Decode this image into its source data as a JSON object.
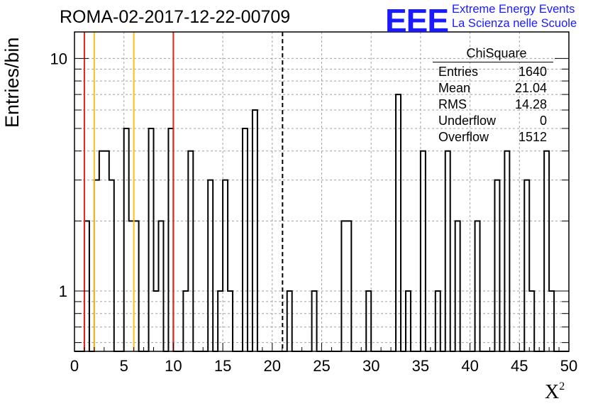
{
  "header": {
    "run_title": "ROMA-02-2017-12-22-00709",
    "logo": "EEE",
    "logo_line1": "Extreme Energy Events",
    "logo_line2": "La Scienza nelle Scuole"
  },
  "stats": {
    "title": "ChiSquare",
    "rows": [
      {
        "label": "Entries",
        "value": "1640"
      },
      {
        "label": "Mean",
        "value": "21.04"
      },
      {
        "label": "RMS",
        "value": "14.28"
      },
      {
        "label": "Underflow",
        "value": "0"
      },
      {
        "label": "Overflow",
        "value": "1512"
      }
    ]
  },
  "chart_data": {
    "type": "histogram",
    "title": "ROMA-02-2017-12-22-00709",
    "xlabel": "X",
    "xlabel_sup": "2",
    "ylabel": "Entries/bin",
    "xlim": [
      0,
      50
    ],
    "ylim": [
      0.55,
      13
    ],
    "y_scale": "log",
    "bin_width": 0.5,
    "x_ticks": [
      "0",
      "5",
      "10",
      "15",
      "20",
      "25",
      "30",
      "35",
      "40",
      "45",
      "50"
    ],
    "y_tick_labels": [
      "1",
      "10"
    ],
    "grid": true,
    "bins_start": 0,
    "counts": [
      0,
      0,
      2,
      0,
      3,
      4,
      4,
      3,
      0,
      0,
      5,
      2,
      2,
      0,
      0,
      5,
      1,
      2,
      0,
      5,
      0,
      0,
      1,
      4,
      0,
      0,
      0,
      3,
      0,
      1,
      3,
      1,
      0,
      0,
      5,
      0,
      6,
      0,
      0,
      0,
      0,
      0,
      0,
      1,
      0,
      0,
      0,
      0,
      1,
      0,
      0,
      0,
      0,
      0,
      2,
      2,
      0,
      0,
      0,
      1,
      0,
      0,
      0,
      0,
      0,
      7,
      0,
      1,
      0,
      0,
      4,
      0,
      0,
      1,
      0,
      4,
      0,
      2,
      0,
      0,
      0,
      2,
      0,
      0,
      0,
      3,
      0,
      4,
      0,
      0,
      0,
      3,
      1,
      0,
      0,
      4,
      1,
      0,
      0,
      0,
      0,
      0
    ],
    "lines": [
      {
        "x": 1,
        "color": "#e8221c",
        "style": "solid"
      },
      {
        "x": 2,
        "color": "#f2c21b",
        "style": "solid"
      },
      {
        "x": 6,
        "color": "#f2c21b",
        "style": "solid"
      },
      {
        "x": 10,
        "color": "#e8221c",
        "style": "solid"
      },
      {
        "x": 21.04,
        "color": "#000000",
        "style": "dashed"
      }
    ],
    "partial_tail": [
      {
        "x0": 47.5,
        "x1": 48,
        "y": 1
      }
    ]
  },
  "colors": {
    "hist_line": "#000000",
    "grid": "#a0a0a0",
    "logo_blue": "#1a1aff"
  }
}
